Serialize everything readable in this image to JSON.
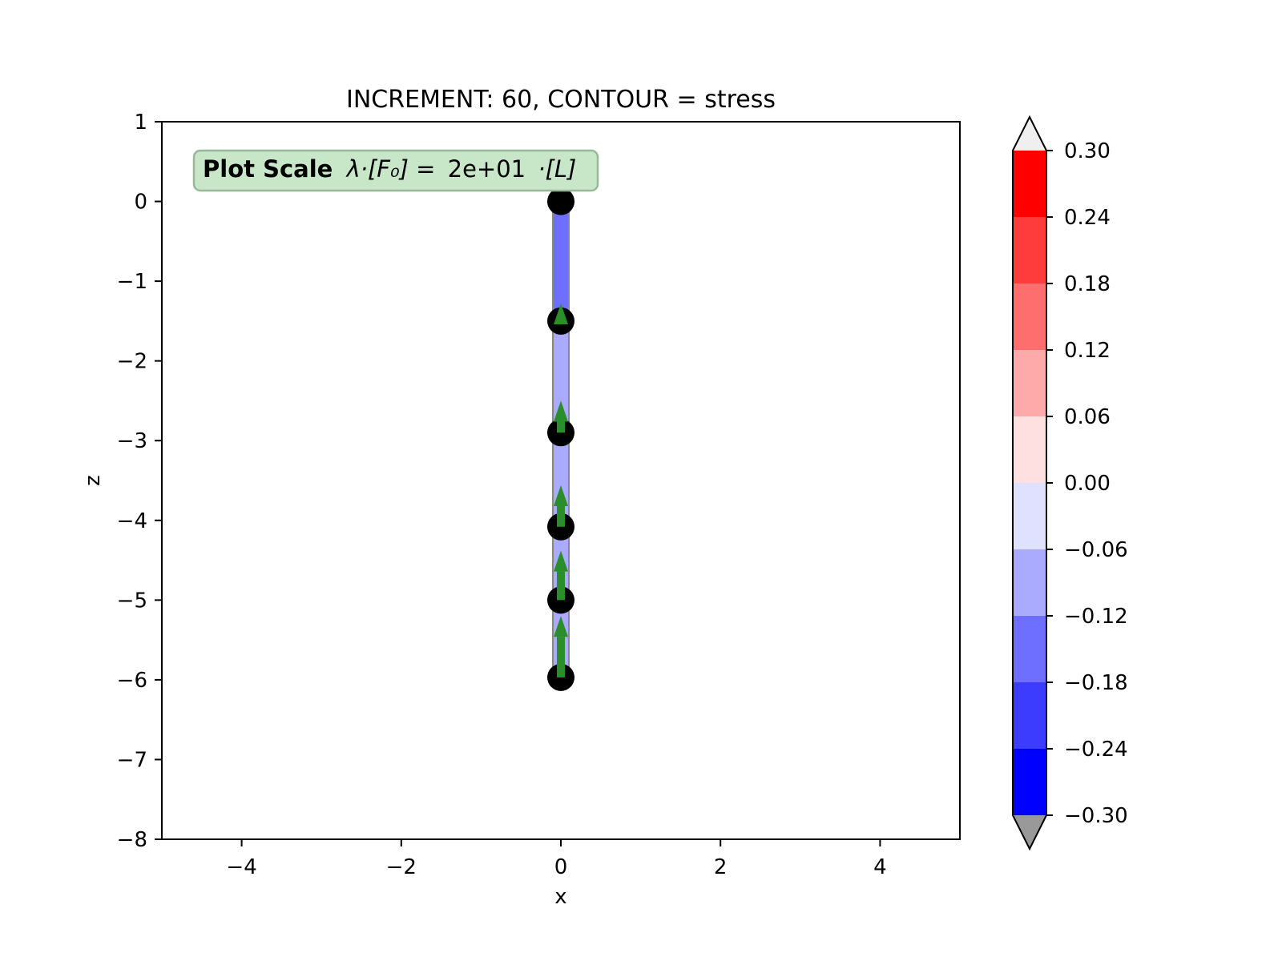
{
  "chart_data": {
    "type": "scatter",
    "title": "INCREMENT: 60, CONTOUR = stress",
    "xlabel": "x",
    "ylabel": "z",
    "xlim": [
      -5,
      5
    ],
    "ylim": [
      -8,
      1
    ],
    "x_ticks": [
      -4,
      -2,
      0,
      2,
      4
    ],
    "x_tick_labels": [
      "−4",
      "−2",
      "0",
      "2",
      "4"
    ],
    "y_ticks": [
      1,
      0,
      -1,
      -2,
      -3,
      -4,
      -5,
      -6,
      -7,
      -8
    ],
    "y_tick_labels": [
      "1",
      "0",
      "−1",
      "−2",
      "−3",
      "−4",
      "−5",
      "−6",
      "−7",
      "−8"
    ],
    "grid": false,
    "annotation": {
      "bold": "Plot Scale",
      "formula": "λ·[F₀] = ",
      "value": "2e+01",
      "suffix": "·[L]"
    },
    "nodes": [
      {
        "x": 0,
        "z": 0.0
      },
      {
        "x": 0,
        "z": -1.5
      },
      {
        "x": 0,
        "z": -2.9
      },
      {
        "x": 0,
        "z": -4.08
      },
      {
        "x": 0,
        "z": -5.0
      },
      {
        "x": 0,
        "z": -5.97
      }
    ],
    "elements": [
      {
        "z_start": 0.0,
        "z_end": -1.5,
        "stress": -0.16
      },
      {
        "z_start": -1.5,
        "z_end": -2.9,
        "stress": -0.1
      },
      {
        "z_start": -2.9,
        "z_end": -4.08,
        "stress": -0.1
      },
      {
        "z_start": -4.08,
        "z_end": -5.0,
        "stress": -0.1
      },
      {
        "z_start": -5.0,
        "z_end": -5.97,
        "stress": -0.1
      }
    ],
    "force_arrows": [
      {
        "x": 0,
        "z_tail": -1.5,
        "z_head": -1.28
      },
      {
        "x": 0,
        "z_tail": -2.9,
        "z_head": -2.5
      },
      {
        "x": 0,
        "z_tail": -4.08,
        "z_head": -3.56
      },
      {
        "x": 0,
        "z_tail": -5.0,
        "z_head": -4.38
      },
      {
        "x": 0,
        "z_tail": -5.97,
        "z_head": -5.2
      }
    ],
    "colorbar": {
      "ticks": [
        0.3,
        0.24,
        0.18,
        0.12,
        0.06,
        0.0,
        -0.06,
        -0.12,
        -0.18,
        -0.24,
        -0.3
      ],
      "tick_labels": [
        "0.30",
        "0.24",
        "0.18",
        "0.12",
        "0.06",
        "0.00",
        "−0.06",
        "−0.12",
        "−0.18",
        "−0.24",
        "−0.30"
      ],
      "levels_top_to_bottom": [
        "#ff0000",
        "#ff3c3c",
        "#ff6e6e",
        "#ffaaaa",
        "#ffe0e0",
        "#e0e0ff",
        "#aaaaff",
        "#6e6eff",
        "#3c3cff",
        "#0000ff"
      ],
      "extend_max_color": "#efefef",
      "extend_min_color": "#999999"
    },
    "colors": {
      "node": "#000000",
      "arrow": "#2a8f2a",
      "annotation_bg": "#c8e6c8",
      "annotation_border": "#99b899",
      "element_edge": "#888888"
    }
  }
}
